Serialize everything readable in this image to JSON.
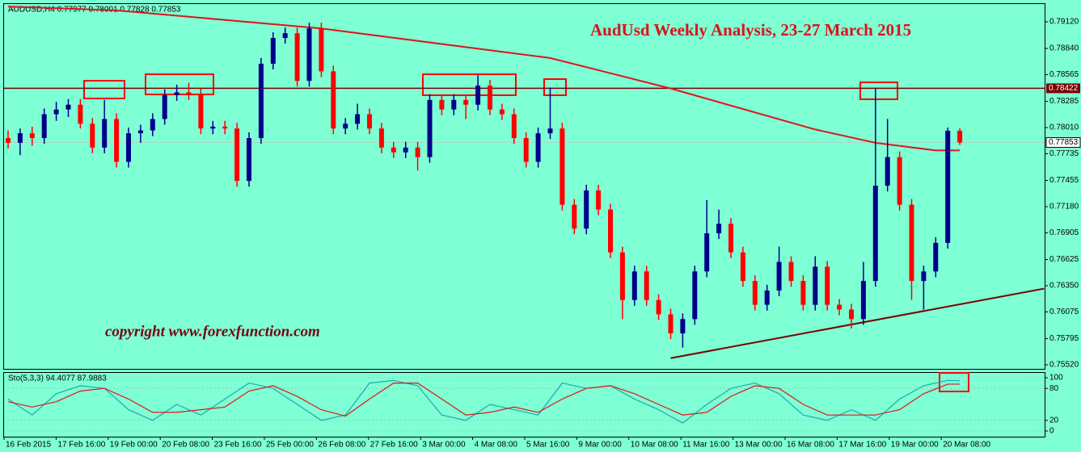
{
  "chart_data": {
    "type": "candlestick",
    "header": "AUDUSD,H4  0.77977 0.78001 0.77828 0.77853",
    "title": "AudUsd Weekly Analysis, 23-27 March 2015",
    "annotation": "copyright  www.forexfunction.com",
    "ylim": [
      0.7552,
      0.7912
    ],
    "yticks": [
      {
        "value": 0.7912,
        "label": "0.79120"
      },
      {
        "value": 0.7884,
        "label": "0.78840"
      },
      {
        "value": 0.78565,
        "label": "0.78565"
      },
      {
        "value": 0.78285,
        "label": "0.78285"
      },
      {
        "value": 0.7801,
        "label": "0.78010"
      },
      {
        "value": 0.77735,
        "label": "0.77735"
      },
      {
        "value": 0.77455,
        "label": "0.77455"
      },
      {
        "value": 0.7718,
        "label": "0.77180"
      },
      {
        "value": 0.76905,
        "label": "0.76905"
      },
      {
        "value": 0.76625,
        "label": "0.76625"
      },
      {
        "value": 0.7635,
        "label": "0.76350"
      },
      {
        "value": 0.76075,
        "label": "0.76075"
      },
      {
        "value": 0.75795,
        "label": "0.75795"
      },
      {
        "value": 0.7552,
        "label": "0.75520"
      }
    ],
    "level": {
      "value": 0.78422,
      "label": "0.78422",
      "color": "#7a0000"
    },
    "last_price": {
      "value": 0.77853,
      "label": "0.77853"
    },
    "up_color": "#00008b",
    "down_color": "#ff0000",
    "ohlc": [
      [
        0.779,
        0.7798,
        0.7779,
        0.7785
      ],
      [
        0.7785,
        0.78,
        0.7772,
        0.7795
      ],
      [
        0.7795,
        0.7802,
        0.7782,
        0.779
      ],
      [
        0.779,
        0.7821,
        0.7784,
        0.7815
      ],
      [
        0.7815,
        0.7828,
        0.7808,
        0.782
      ],
      [
        0.782,
        0.7831,
        0.7812,
        0.7825
      ],
      [
        0.7825,
        0.7831,
        0.78,
        0.7805
      ],
      [
        0.7805,
        0.7811,
        0.7774,
        0.778
      ],
      [
        0.778,
        0.783,
        0.7774,
        0.781
      ],
      [
        0.781,
        0.7816,
        0.7759,
        0.7765
      ],
      [
        0.7765,
        0.7801,
        0.7759,
        0.7795
      ],
      [
        0.7795,
        0.7804,
        0.7785,
        0.7798
      ],
      [
        0.7798,
        0.7816,
        0.7792,
        0.781
      ],
      [
        0.781,
        0.7841,
        0.7804,
        0.7835
      ],
      [
        0.7835,
        0.7846,
        0.7829,
        0.7838
      ],
      [
        0.7838,
        0.7848,
        0.783,
        0.7836
      ],
      [
        0.7836,
        0.7842,
        0.7794,
        0.78
      ],
      [
        0.78,
        0.7808,
        0.7794,
        0.7802
      ],
      [
        0.7802,
        0.7808,
        0.7794,
        0.78
      ],
      [
        0.78,
        0.7806,
        0.7739,
        0.7745
      ],
      [
        0.7745,
        0.7796,
        0.7739,
        0.779
      ],
      [
        0.779,
        0.7874,
        0.7784,
        0.7868
      ],
      [
        0.7868,
        0.7901,
        0.7862,
        0.7895
      ],
      [
        0.7895,
        0.7906,
        0.7889,
        0.79
      ],
      [
        0.79,
        0.7906,
        0.7844,
        0.785
      ],
      [
        0.785,
        0.7911,
        0.7844,
        0.7905
      ],
      [
        0.7905,
        0.7911,
        0.7854,
        0.786
      ],
      [
        0.786,
        0.7866,
        0.7794,
        0.78
      ],
      [
        0.78,
        0.7811,
        0.7794,
        0.7805
      ],
      [
        0.7805,
        0.7826,
        0.7799,
        0.7815
      ],
      [
        0.7815,
        0.7821,
        0.7794,
        0.78
      ],
      [
        0.78,
        0.7806,
        0.7774,
        0.778
      ],
      [
        0.778,
        0.7786,
        0.7769,
        0.7775
      ],
      [
        0.7775,
        0.7786,
        0.7769,
        0.778
      ],
      [
        0.778,
        0.7786,
        0.7756,
        0.777
      ],
      [
        0.777,
        0.7836,
        0.7764,
        0.783
      ],
      [
        0.783,
        0.7836,
        0.7814,
        0.782
      ],
      [
        0.782,
        0.7836,
        0.7814,
        0.783
      ],
      [
        0.783,
        0.7836,
        0.781,
        0.7825
      ],
      [
        0.7825,
        0.7856,
        0.7819,
        0.7845
      ],
      [
        0.7845,
        0.7851,
        0.7814,
        0.782
      ],
      [
        0.782,
        0.7826,
        0.7809,
        0.7815
      ],
      [
        0.7815,
        0.7821,
        0.7784,
        0.779
      ],
      [
        0.779,
        0.7796,
        0.7759,
        0.7765
      ],
      [
        0.7765,
        0.7801,
        0.7759,
        0.7795
      ],
      [
        0.7795,
        0.7843,
        0.7789,
        0.78
      ],
      [
        0.78,
        0.7806,
        0.7714,
        0.772
      ],
      [
        0.772,
        0.7726,
        0.7689,
        0.7695
      ],
      [
        0.7695,
        0.7741,
        0.7689,
        0.7735
      ],
      [
        0.7735,
        0.7741,
        0.7709,
        0.7715
      ],
      [
        0.7715,
        0.7721,
        0.7664,
        0.767
      ],
      [
        0.767,
        0.7676,
        0.76,
        0.762
      ],
      [
        0.762,
        0.7656,
        0.7614,
        0.765
      ],
      [
        0.765,
        0.7656,
        0.7614,
        0.762
      ],
      [
        0.762,
        0.7626,
        0.7599,
        0.7605
      ],
      [
        0.7605,
        0.7611,
        0.7579,
        0.7585
      ],
      [
        0.7585,
        0.7606,
        0.757,
        0.76
      ],
      [
        0.76,
        0.7656,
        0.7594,
        0.765
      ],
      [
        0.765,
        0.7725,
        0.7644,
        0.769
      ],
      [
        0.769,
        0.7715,
        0.7684,
        0.77
      ],
      [
        0.77,
        0.7706,
        0.7664,
        0.767
      ],
      [
        0.767,
        0.7676,
        0.7634,
        0.764
      ],
      [
        0.764,
        0.7646,
        0.7609,
        0.7615
      ],
      [
        0.7615,
        0.7636,
        0.7609,
        0.763
      ],
      [
        0.763,
        0.7676,
        0.7624,
        0.766
      ],
      [
        0.766,
        0.7666,
        0.7634,
        0.764
      ],
      [
        0.764,
        0.7646,
        0.7609,
        0.7615
      ],
      [
        0.7615,
        0.7666,
        0.7609,
        0.7655
      ],
      [
        0.7655,
        0.7661,
        0.7609,
        0.7615
      ],
      [
        0.7615,
        0.7621,
        0.7604,
        0.761
      ],
      [
        0.761,
        0.7616,
        0.759,
        0.76
      ],
      [
        0.76,
        0.766,
        0.7594,
        0.764
      ],
      [
        0.764,
        0.7843,
        0.7634,
        0.774
      ],
      [
        0.774,
        0.781,
        0.7734,
        0.777
      ],
      [
        0.777,
        0.7776,
        0.7714,
        0.772
      ],
      [
        0.772,
        0.7726,
        0.762,
        0.764
      ],
      [
        0.764,
        0.7656,
        0.761,
        0.765
      ],
      [
        0.765,
        0.7686,
        0.7644,
        0.768
      ],
      [
        0.768,
        0.7801,
        0.7674,
        0.77977
      ],
      [
        0.77977,
        0.78001,
        0.77828,
        0.77853
      ]
    ],
    "moving_average": {
      "color": "#e0141b",
      "x": [
        0,
        9,
        26,
        45,
        55,
        67,
        72,
        77,
        79
      ],
      "values": [
        0.7928,
        0.7924,
        0.7905,
        0.7874,
        0.7842,
        0.7799,
        0.7785,
        0.7777,
        0.7777
      ]
    },
    "trendline": {
      "color": "#7a0000",
      "x": [
        55,
        86
      ],
      "values": [
        0.7559,
        0.7632
      ]
    },
    "x_labels": [
      "16 Feb 2015",
      "17 Feb 16:00",
      "19 Feb 00:00",
      "20 Feb 08:00",
      "23 Feb 16:00",
      "25 Feb 00:00",
      "26 Feb 08:00",
      "27 Feb 16:00",
      "3 Mar 00:00",
      "4 Mar 08:00",
      "5 Mar 16:00",
      "9 Mar 00:00",
      "10 Mar 08:00",
      "11 Mar 16:00",
      "13 Mar 00:00",
      "16 Mar 08:00",
      "17 Mar 16:00",
      "19 Mar 00:00",
      "20 Mar 08:00"
    ],
    "stochastic": {
      "label": "Sto(5,3,3) 94.4077 87.9883",
      "ylim": [
        0,
        100
      ],
      "yticks": [
        100,
        80,
        20,
        0
      ],
      "x": [
        0,
        2,
        4,
        6,
        8,
        10,
        12,
        14,
        16,
        18,
        20,
        22,
        24,
        26,
        28,
        30,
        32,
        34,
        36,
        38,
        40,
        42,
        44,
        46,
        48,
        50,
        52,
        54,
        56,
        58,
        60,
        62,
        64,
        66,
        68,
        70,
        72,
        74,
        76,
        78,
        79
      ],
      "series": [
        {
          "name": "Main",
          "color": "#1fa8b0",
          "values": [
            60,
            30,
            70,
            85,
            80,
            40,
            20,
            50,
            30,
            60,
            90,
            80,
            50,
            20,
            30,
            90,
            95,
            85,
            30,
            20,
            50,
            40,
            30,
            90,
            80,
            85,
            60,
            40,
            15,
            50,
            80,
            90,
            70,
            30,
            20,
            40,
            20,
            60,
            85,
            95,
            94.4077
          ]
        },
        {
          "name": "Signal",
          "color": "#e0141b",
          "values": [
            55,
            45,
            55,
            75,
            80,
            60,
            35,
            35,
            40,
            45,
            75,
            85,
            65,
            40,
            28,
            60,
            90,
            90,
            60,
            30,
            35,
            45,
            35,
            60,
            80,
            85,
            70,
            50,
            30,
            35,
            65,
            85,
            80,
            50,
            30,
            30,
            30,
            40,
            70,
            88,
            87.9883
          ]
        }
      ]
    }
  }
}
